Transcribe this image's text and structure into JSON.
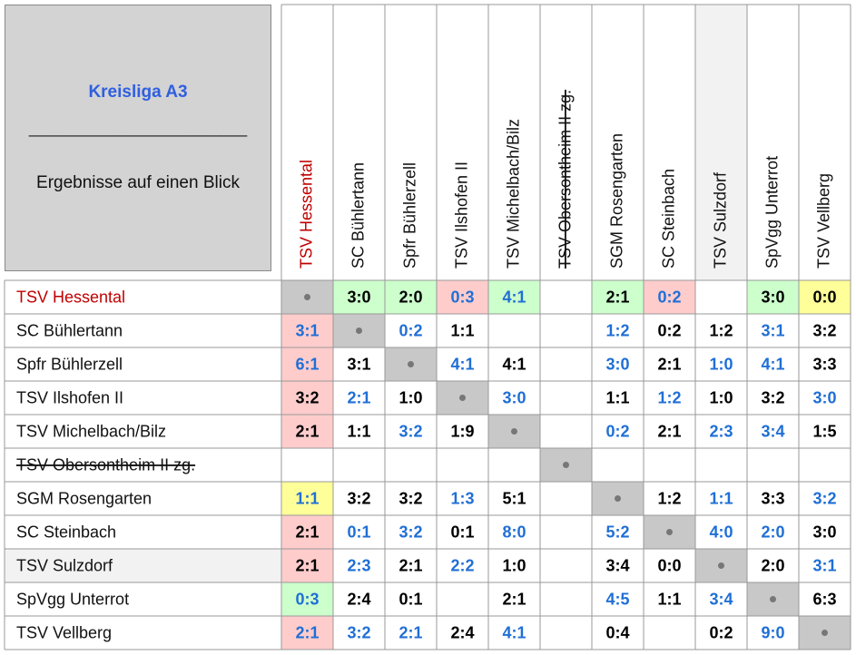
{
  "header": {
    "title": "Kreisliga A3",
    "divider": "________________________",
    "subtitle": "Ergebnisse auf einen Blick"
  },
  "columns": [
    {
      "name": "TSV Hessental",
      "color": "#c00000"
    },
    {
      "name": "SC Bühlertann"
    },
    {
      "name": "Spfr Bühlerzell"
    },
    {
      "name": "TSV Ilshofen II"
    },
    {
      "name": "TSV Michelbach/Bilz"
    },
    {
      "name": "TSV Obersontheim II zg.",
      "strike": true
    },
    {
      "name": "SGM Rosengarten"
    },
    {
      "name": "SC Steinbach"
    },
    {
      "name": "TSV Sulzdorf",
      "bg": "#f2f2f2"
    },
    {
      "name": "SpVgg Unterrot"
    },
    {
      "name": "TSV Vellberg"
    }
  ],
  "rows": [
    {
      "team": "TSV Hessental",
      "color": "#c00000",
      "cells": [
        null,
        {
          "text": "3:0",
          "color": "#000",
          "bg": "#ccffcc"
        },
        {
          "text": "2:0",
          "color": "#000",
          "bg": "#ccffcc"
        },
        {
          "text": "0:3",
          "color": "#1f6fd6",
          "bg": "#ffcccc"
        },
        {
          "text": "4:1",
          "color": "#1f6fd6",
          "bg": "#ccffcc"
        },
        null,
        {
          "text": "2:1",
          "color": "#000",
          "bg": "#ccffcc"
        },
        {
          "text": "0:2",
          "color": "#1f6fd6",
          "bg": "#ffcccc"
        },
        null,
        {
          "text": "3:0",
          "color": "#000",
          "bg": "#ccffcc"
        },
        {
          "text": "0:0",
          "color": "#000",
          "bg": "#ffff99"
        }
      ]
    },
    {
      "team": "SC Bühlertann",
      "cells": [
        {
          "text": "3:1",
          "color": "#1f6fd6",
          "bg": "#ffcccc"
        },
        null,
        {
          "text": "0:2",
          "color": "#1f6fd6"
        },
        {
          "text": "1:1",
          "color": "#000"
        },
        null,
        null,
        {
          "text": "1:2",
          "color": "#1f6fd6"
        },
        {
          "text": "0:2",
          "color": "#000"
        },
        {
          "text": "1:2",
          "color": "#000"
        },
        {
          "text": "3:1",
          "color": "#1f6fd6"
        },
        {
          "text": "3:2",
          "color": "#000"
        }
      ]
    },
    {
      "team": "Spfr Bühlerzell",
      "cells": [
        {
          "text": "6:1",
          "color": "#1f6fd6",
          "bg": "#ffcccc"
        },
        {
          "text": "3:1",
          "color": "#000"
        },
        null,
        {
          "text": "4:1",
          "color": "#1f6fd6"
        },
        {
          "text": "4:1",
          "color": "#000"
        },
        null,
        {
          "text": "3:0",
          "color": "#1f6fd6"
        },
        {
          "text": "2:1",
          "color": "#000"
        },
        {
          "text": "1:0",
          "color": "#1f6fd6"
        },
        {
          "text": "4:1",
          "color": "#1f6fd6"
        },
        {
          "text": "3:3",
          "color": "#000"
        }
      ]
    },
    {
      "team": "TSV Ilshofen II",
      "cells": [
        {
          "text": "3:2",
          "color": "#000",
          "bg": "#ffcccc"
        },
        {
          "text": "2:1",
          "color": "#1f6fd6"
        },
        {
          "text": "1:0",
          "color": "#000"
        },
        null,
        {
          "text": "3:0",
          "color": "#1f6fd6"
        },
        null,
        {
          "text": "1:1",
          "color": "#000"
        },
        {
          "text": "1:2",
          "color": "#1f6fd6"
        },
        {
          "text": "1:0",
          "color": "#000"
        },
        {
          "text": "3:2",
          "color": "#000"
        },
        {
          "text": "3:0",
          "color": "#1f6fd6"
        }
      ]
    },
    {
      "team": "TSV Michelbach/Bilz",
      "cells": [
        {
          "text": "2:1",
          "color": "#000",
          "bg": "#ffcccc"
        },
        {
          "text": "1:1",
          "color": "#000"
        },
        {
          "text": "3:2",
          "color": "#1f6fd6"
        },
        {
          "text": "1:9",
          "color": "#000"
        },
        null,
        null,
        {
          "text": "0:2",
          "color": "#1f6fd6"
        },
        {
          "text": "2:1",
          "color": "#000"
        },
        {
          "text": "2:3",
          "color": "#1f6fd6"
        },
        {
          "text": "3:4",
          "color": "#1f6fd6"
        },
        {
          "text": "1:5",
          "color": "#000"
        }
      ]
    },
    {
      "team": "TSV Obersontheim II zg.",
      "strike": true,
      "cells": [
        null,
        null,
        null,
        null,
        null,
        null,
        null,
        null,
        null,
        null,
        null
      ]
    },
    {
      "team": "SGM Rosengarten",
      "cells": [
        {
          "text": "1:1",
          "color": "#1f6fd6",
          "bg": "#ffff99"
        },
        {
          "text": "3:2",
          "color": "#000"
        },
        {
          "text": "3:2",
          "color": "#000"
        },
        {
          "text": "1:3",
          "color": "#1f6fd6"
        },
        {
          "text": "5:1",
          "color": "#000"
        },
        null,
        null,
        {
          "text": "1:2",
          "color": "#000"
        },
        {
          "text": "1:1",
          "color": "#1f6fd6"
        },
        {
          "text": "3:3",
          "color": "#000"
        },
        {
          "text": "3:2",
          "color": "#1f6fd6"
        }
      ]
    },
    {
      "team": "SC Steinbach",
      "cells": [
        {
          "text": "2:1",
          "color": "#000",
          "bg": "#ffcccc"
        },
        {
          "text": "0:1",
          "color": "#1f6fd6"
        },
        {
          "text": "3:2",
          "color": "#1f6fd6"
        },
        {
          "text": "0:1",
          "color": "#000"
        },
        {
          "text": "8:0",
          "color": "#1f6fd6"
        },
        null,
        {
          "text": "5:2",
          "color": "#1f6fd6"
        },
        null,
        {
          "text": "4:0",
          "color": "#1f6fd6"
        },
        {
          "text": "2:0",
          "color": "#1f6fd6"
        },
        {
          "text": "3:0",
          "color": "#000"
        }
      ]
    },
    {
      "team": "TSV Sulzdorf",
      "bg": "#f2f2f2",
      "cells": [
        {
          "text": "2:1",
          "color": "#000",
          "bg": "#ffcccc"
        },
        {
          "text": "2:3",
          "color": "#1f6fd6"
        },
        {
          "text": "2:1",
          "color": "#000"
        },
        {
          "text": "2:2",
          "color": "#1f6fd6"
        },
        {
          "text": "1:0",
          "color": "#000"
        },
        null,
        {
          "text": "3:4",
          "color": "#000"
        },
        {
          "text": "0:0",
          "color": "#000"
        },
        null,
        {
          "text": "2:0",
          "color": "#000"
        },
        {
          "text": "3:1",
          "color": "#1f6fd6"
        }
      ]
    },
    {
      "team": "SpVgg Unterrot",
      "cells": [
        {
          "text": "0:3",
          "color": "#1f6fd6",
          "bg": "#ccffcc"
        },
        {
          "text": "2:4",
          "color": "#000"
        },
        {
          "text": "0:1",
          "color": "#000"
        },
        null,
        {
          "text": "2:1",
          "color": "#000"
        },
        null,
        {
          "text": "4:5",
          "color": "#1f6fd6"
        },
        {
          "text": "1:1",
          "color": "#000"
        },
        {
          "text": "3:4",
          "color": "#1f6fd6"
        },
        null,
        {
          "text": "6:3",
          "color": "#000"
        }
      ]
    },
    {
      "team": "TSV Vellberg",
      "cells": [
        {
          "text": "2:1",
          "color": "#1f6fd6",
          "bg": "#ffcccc"
        },
        {
          "text": "3:2",
          "color": "#1f6fd6"
        },
        {
          "text": "2:1",
          "color": "#1f6fd6"
        },
        {
          "text": "2:4",
          "color": "#000"
        },
        {
          "text": "4:1",
          "color": "#1f6fd6"
        },
        null,
        {
          "text": "0:4",
          "color": "#000"
        },
        null,
        {
          "text": "0:2",
          "color": "#000"
        },
        {
          "text": "9:0",
          "color": "#1f6fd6"
        },
        null
      ]
    }
  ]
}
